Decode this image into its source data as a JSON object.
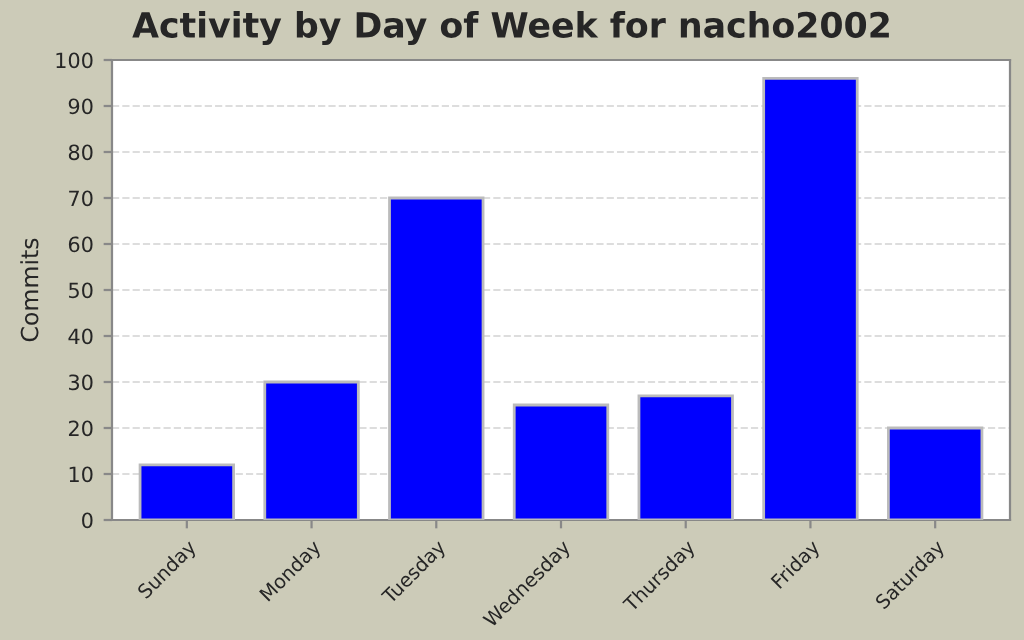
{
  "chart_data": {
    "type": "bar",
    "title": "Activity by Day of Week for nacho2002",
    "ylabel": "Commits",
    "categories": [
      "Sunday",
      "Monday",
      "Tuesday",
      "Wednesday",
      "Thursday",
      "Friday",
      "Saturday"
    ],
    "values": [
      12,
      30,
      70,
      25,
      27,
      96,
      20
    ],
    "color": "#0000ff",
    "ylim": [
      0,
      100
    ],
    "yticks": [
      0,
      10,
      20,
      30,
      40,
      50,
      60,
      70,
      80,
      90,
      100
    ],
    "grid": "y"
  }
}
